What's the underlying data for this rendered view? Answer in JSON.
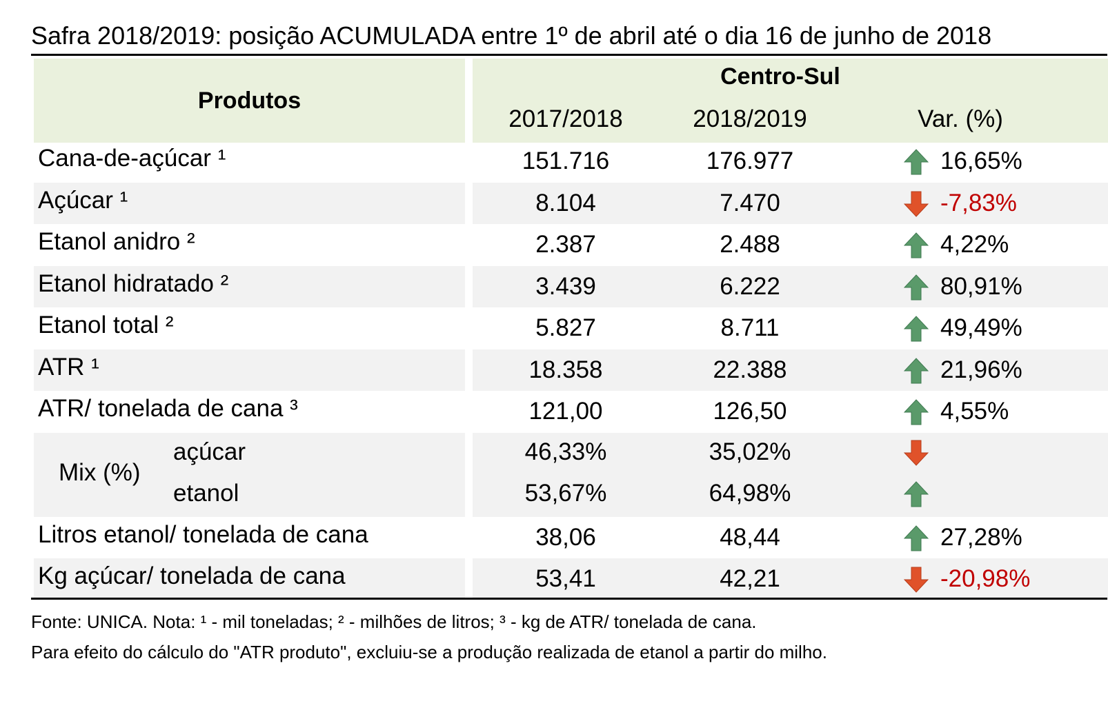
{
  "title": "Safra 2018/2019: posição ACUMULADA entre 1º de abril até o dia 16 de junho de 2018",
  "header": {
    "produtos": "Produtos",
    "region": "Centro-Sul",
    "col1": "2017/2018",
    "col2": "2018/2019",
    "col3": "Var. (%)"
  },
  "rows": [
    {
      "label": "Cana-de-açúcar ¹",
      "v1": "151.716",
      "v2": "176.977",
      "var": "16,65%",
      "dir": "up"
    },
    {
      "label": "Açúcar ¹",
      "v1": "8.104",
      "v2": "7.470",
      "var": "-7,83%",
      "dir": "down"
    },
    {
      "label": "Etanol anidro ²",
      "v1": "2.387",
      "v2": "2.488",
      "var": "4,22%",
      "dir": "up"
    },
    {
      "label": "Etanol hidratado ²",
      "v1": "3.439",
      "v2": "6.222",
      "var": "80,91%",
      "dir": "up"
    },
    {
      "label": "Etanol total ²",
      "v1": "5.827",
      "v2": "8.711",
      "var": "49,49%",
      "dir": "up"
    },
    {
      "label": "ATR ¹",
      "v1": "18.358",
      "v2": "22.388",
      "var": "21,96%",
      "dir": "up"
    },
    {
      "label": "ATR/ tonelada de cana ³",
      "v1": "121,00",
      "v2": "126,50",
      "var": "4,55%",
      "dir": "up"
    }
  ],
  "mix": {
    "label": "Mix (%)",
    "rows": [
      {
        "label": "açúcar",
        "v1": "46,33%",
        "v2": "35,02%",
        "dir": "down"
      },
      {
        "label": "etanol",
        "v1": "53,67%",
        "v2": "64,98%",
        "dir": "up"
      }
    ]
  },
  "rows_after": [
    {
      "label": "Litros etanol/ tonelada de cana",
      "v1": "38,06",
      "v2": "48,44",
      "var": "27,28%",
      "dir": "up"
    },
    {
      "label": "Kg açúcar/ tonelada de cana",
      "v1": "53,41",
      "v2": "42,21",
      "var": "-20,98%",
      "dir": "down"
    }
  ],
  "notes": {
    "line1": "Fonte: UNICA. Nota: ¹ - mil toneladas; ² - milhões de litros; ³ - kg de ATR/ tonelada de cana.",
    "line2": "Para efeito do cálculo do \"ATR produto\", excluiu-se a produção realizada de etanol a partir do milho."
  },
  "colors": {
    "up": "#5a9a6a",
    "down": "#e0522a",
    "negative_text": "#c00000",
    "header_bg": "#eaf1dd",
    "stripe_bg": "#f2f2f2"
  },
  "icons": {
    "up": "arrow-up-icon",
    "down": "arrow-down-icon"
  }
}
